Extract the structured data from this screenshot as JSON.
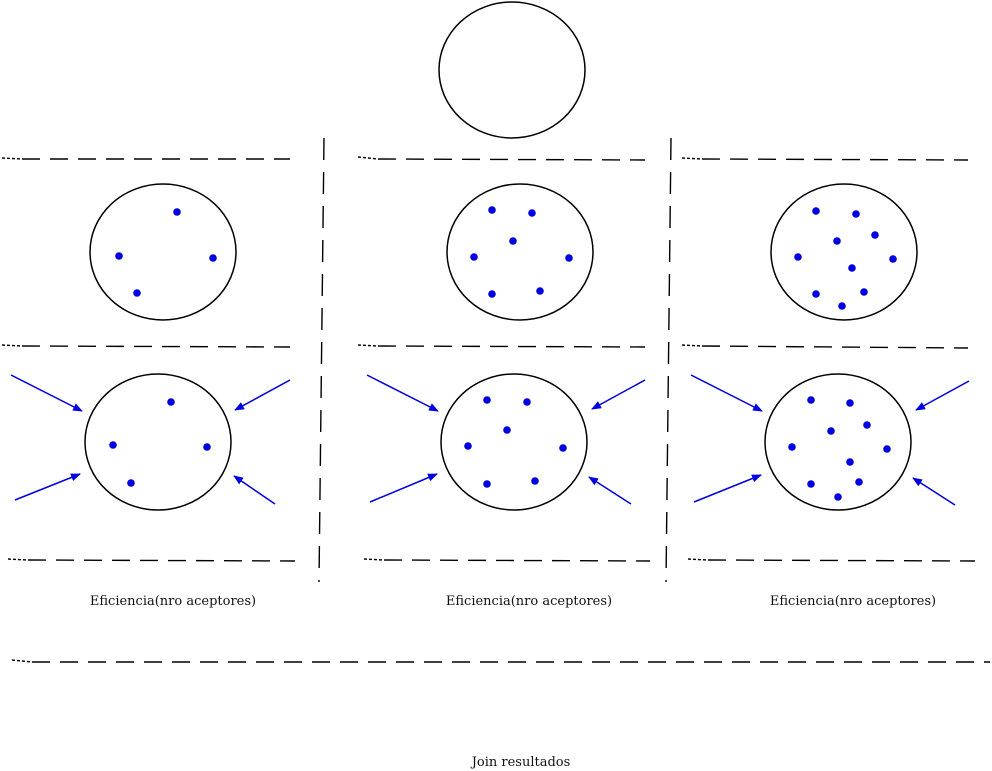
{
  "colors": {
    "dot": "#0000e0",
    "arrow": "#0000e0",
    "line": "#000000"
  },
  "panels": [
    {
      "label": "Eficiencia(nro aceptores)"
    },
    {
      "label": "Eficiencia(nro aceptores)"
    },
    {
      "label": "Eficiencia(nro aceptores)"
    }
  ],
  "footer": {
    "label": "Join resultados"
  }
}
